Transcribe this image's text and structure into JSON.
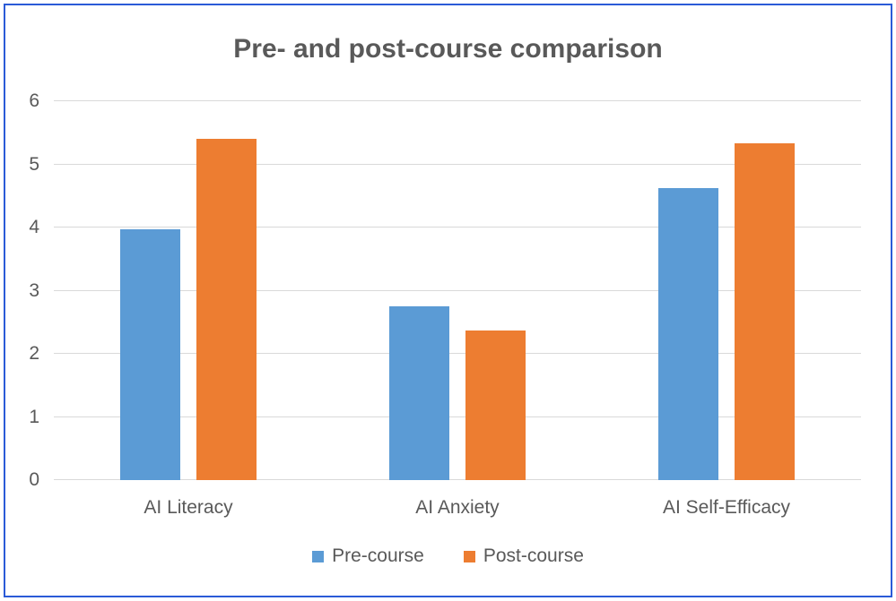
{
  "chart_data": {
    "type": "bar",
    "title": "Pre- and post-course comparison",
    "categories": [
      "AI Literacy",
      "AI Anxiety",
      "AI Self-Efficacy"
    ],
    "series": [
      {
        "name": "Pre-course",
        "color": "#5B9BD5",
        "values": [
          3.97,
          2.75,
          4.63
        ]
      },
      {
        "name": "Post-course",
        "color": "#ED7D31",
        "values": [
          5.41,
          2.37,
          5.34
        ]
      }
    ],
    "xlabel": "",
    "ylabel": "",
    "ylim": [
      0,
      6
    ],
    "yticks": [
      0,
      1,
      2,
      3,
      4,
      5,
      6
    ],
    "grid": "horizontal-on",
    "legend_position": "bottom"
  },
  "style": {
    "frame_border_color": "#2b5bd7",
    "gridline_color": "#d9d9d9",
    "text_color": "#595959"
  }
}
